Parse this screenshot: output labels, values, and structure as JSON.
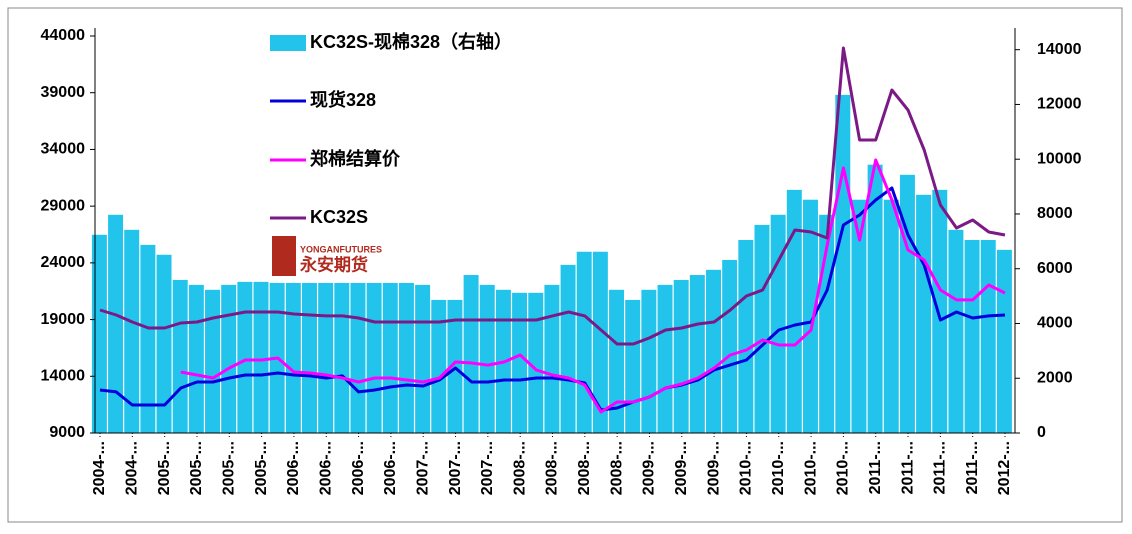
{
  "chart_data": {
    "type": "combo",
    "categories": [
      "2004-...",
      null,
      "2004-...",
      null,
      "2005-...",
      null,
      "2005-...",
      null,
      "2005-...",
      null,
      "2005-...",
      null,
      "2006-...",
      null,
      "2006-...",
      null,
      "2006-...",
      null,
      "2006-...",
      null,
      "2007-...",
      null,
      "2007-...",
      null,
      "2007-...",
      null,
      "2008-...",
      null,
      "2008-...",
      null,
      "2008-...",
      null,
      "2008-...",
      null,
      "2009-...",
      null,
      "2009-...",
      null,
      "2009-...",
      null,
      "2010-...",
      null,
      "2010-...",
      null,
      "2010-...",
      null,
      "2010-...",
      null,
      "2011-...",
      null,
      "2011-...",
      null,
      "2011-...",
      null,
      "2011-...",
      null,
      "2012-..."
    ],
    "series": [
      {
        "name": "KC32S-现棉328（右轴）",
        "type": "bar",
        "axis": "y2",
        "color": "#22c4ec",
        "values": [
          7240,
          7970,
          7420,
          6870,
          6510,
          5590,
          5410,
          5230,
          5410,
          5520,
          5520,
          5480,
          5480,
          5480,
          5480,
          5480,
          5480,
          5480,
          5480,
          5480,
          5410,
          4860,
          4860,
          5770,
          5410,
          5230,
          5120,
          5120,
          5410,
          6140,
          6620,
          6620,
          5230,
          4860,
          5230,
          5410,
          5590,
          5770,
          5960,
          6320,
          7050,
          7600,
          7970,
          8880,
          8520,
          7970,
          12350,
          8520,
          9800,
          8520,
          9430,
          8700,
          8880,
          7420,
          7050,
          7050,
          6690
        ]
      },
      {
        "name": "现货328",
        "type": "line",
        "color": "#0000dd",
        "values": [
          12790,
          12620,
          11470,
          11470,
          11470,
          12970,
          13500,
          13500,
          13850,
          14110,
          14110,
          14290,
          14110,
          14030,
          13850,
          14030,
          12620,
          12790,
          13060,
          13230,
          13140,
          13670,
          14730,
          13500,
          13500,
          13670,
          13670,
          13850,
          13850,
          13670,
          13410,
          11030,
          11200,
          11730,
          12170,
          12970,
          13230,
          13670,
          14550,
          15000,
          15440,
          16760,
          18080,
          18520,
          18790,
          21610,
          27340,
          28220,
          29540,
          30600,
          26460,
          23810,
          18960,
          19670,
          19140,
          19320,
          19400
        ]
      },
      {
        "name": "郑棉结算价",
        "type": "line",
        "color": "#ff00ff",
        "values": [
          null,
          null,
          null,
          null,
          null,
          14380,
          14110,
          13850,
          14730,
          15440,
          15440,
          15610,
          14380,
          14290,
          14110,
          13850,
          13500,
          13850,
          13850,
          13670,
          13500,
          13850,
          15260,
          15170,
          14990,
          15260,
          15880,
          14550,
          14110,
          13850,
          13230,
          10850,
          11730,
          11730,
          12170,
          12970,
          13320,
          13850,
          14730,
          15880,
          16320,
          17200,
          16760,
          16760,
          18080,
          25570,
          32360,
          26010,
          33070,
          29540,
          25130,
          24250,
          21610,
          20730,
          20730,
          22050,
          21340
        ]
      },
      {
        "name": "KC32S",
        "type": "line",
        "color": "#7b1a86",
        "values": [
          19840,
          19400,
          18790,
          18260,
          18260,
          18700,
          18790,
          19140,
          19400,
          19670,
          19670,
          19670,
          19490,
          19400,
          19320,
          19320,
          19140,
          18790,
          18790,
          18790,
          18790,
          18790,
          18960,
          18960,
          18960,
          18960,
          18960,
          18960,
          19320,
          19670,
          19320,
          18080,
          16850,
          16850,
          17380,
          18080,
          18260,
          18610,
          18790,
          19840,
          21080,
          21610,
          24250,
          26900,
          26720,
          26190,
          42940,
          34830,
          34830,
          39240,
          37480,
          33950,
          29100,
          27070,
          27780,
          26720,
          26460
        ]
      }
    ],
    "ylim": [
      9000,
      44000
    ],
    "yticks": [
      9000,
      14000,
      19000,
      24000,
      29000,
      34000,
      39000,
      44000
    ],
    "y2lim": [
      0,
      14500
    ],
    "y2ticks": [
      0,
      2000,
      4000,
      6000,
      8000,
      10000,
      12000,
      14000
    ],
    "watermark": "永安期货",
    "watermark_en": "YONGANFUTURES"
  }
}
